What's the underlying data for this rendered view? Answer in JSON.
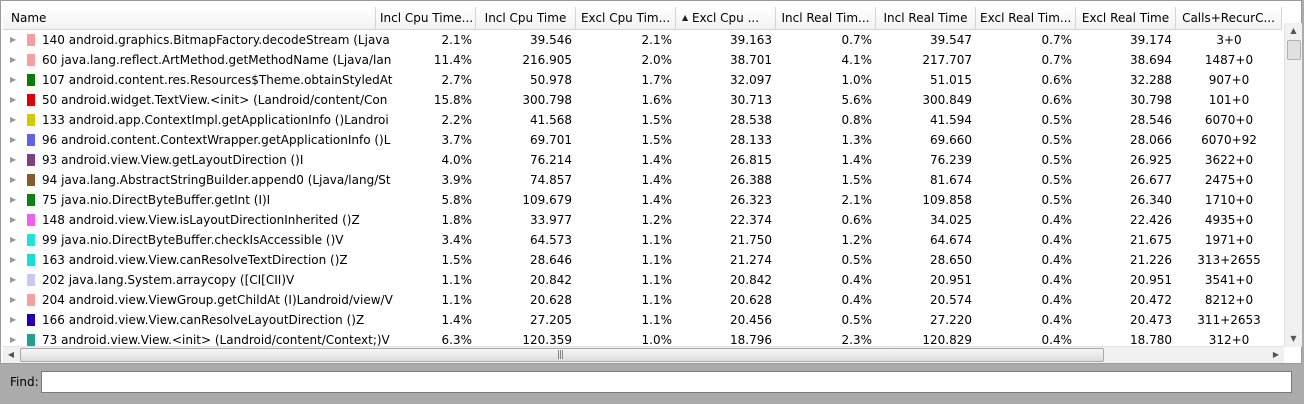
{
  "columns": [
    {
      "label": "Name",
      "width": 373,
      "name": "col-name"
    },
    {
      "label": "Incl Cpu Time...",
      "width": 100,
      "name": "col-incl-cpu-pct"
    },
    {
      "label": "Incl Cpu Time",
      "width": 100,
      "name": "col-incl-cpu"
    },
    {
      "label": "Excl Cpu Tim...",
      "width": 100,
      "name": "col-excl-cpu-pct"
    },
    {
      "label": "Excl Cpu ...",
      "width": 100,
      "name": "col-excl-cpu",
      "sorted": true
    },
    {
      "label": "Incl Real Tim...",
      "width": 100,
      "name": "col-incl-real-pct"
    },
    {
      "label": "Incl Real Time",
      "width": 100,
      "name": "col-incl-real"
    },
    {
      "label": "Excl Real Tim...",
      "width": 100,
      "name": "col-excl-real-pct"
    },
    {
      "label": "Excl Real Time",
      "width": 100,
      "name": "col-excl-real"
    },
    {
      "label": "Calls+RecurC...",
      "width": 106,
      "name": "col-calls"
    }
  ],
  "rows": [
    {
      "color": "#f4a0a0",
      "name": "140 android.graphics.BitmapFactory.decodeStream (Ljava",
      "v": [
        "2.1%",
        "39.546",
        "2.1%",
        "39.163",
        "0.7%",
        "39.547",
        "0.7%",
        "39.174",
        "3+0"
      ]
    },
    {
      "color": "#f4a0a0",
      "name": "60 java.lang.reflect.ArtMethod.getMethodName (Ljava/lan",
      "v": [
        "11.4%",
        "216.905",
        "2.0%",
        "38.701",
        "4.1%",
        "217.707",
        "0.7%",
        "38.694",
        "1487+0"
      ]
    },
    {
      "color": "#0a7a0a",
      "name": "107 android.content.res.Resources$Theme.obtainStyledAt",
      "v": [
        "2.7%",
        "50.978",
        "1.7%",
        "32.097",
        "1.0%",
        "51.015",
        "0.6%",
        "32.288",
        "907+0"
      ]
    },
    {
      "color": "#e00000",
      "name": "50 android.widget.TextView.<init> (Landroid/content/Con",
      "v": [
        "15.8%",
        "300.798",
        "1.6%",
        "30.713",
        "5.6%",
        "300.849",
        "0.6%",
        "30.798",
        "101+0"
      ]
    },
    {
      "color": "#d8c800",
      "name": "133 android.app.ContextImpl.getApplicationInfo ()Landroi",
      "v": [
        "2.2%",
        "41.568",
        "1.5%",
        "28.538",
        "0.8%",
        "41.594",
        "0.5%",
        "28.546",
        "6070+0"
      ]
    },
    {
      "color": "#6060f0",
      "name": "96 android.content.ContextWrapper.getApplicationInfo ()L",
      "v": [
        "3.7%",
        "69.701",
        "1.5%",
        "28.133",
        "1.3%",
        "69.660",
        "0.5%",
        "28.066",
        "6070+92"
      ]
    },
    {
      "color": "#804080",
      "name": "93 android.view.View.getLayoutDirection ()I",
      "v": [
        "4.0%",
        "76.214",
        "1.4%",
        "26.815",
        "1.4%",
        "76.239",
        "0.5%",
        "26.925",
        "3622+0"
      ]
    },
    {
      "color": "#8b5a2b",
      "name": "94 java.lang.AbstractStringBuilder.append0 (Ljava/lang/St",
      "v": [
        "3.9%",
        "74.857",
        "1.4%",
        "26.388",
        "1.5%",
        "81.674",
        "0.5%",
        "26.677",
        "2475+0"
      ]
    },
    {
      "color": "#108010",
      "name": "75 java.nio.DirectByteBuffer.getInt (I)I",
      "v": [
        "5.8%",
        "109.679",
        "1.4%",
        "26.323",
        "2.1%",
        "109.858",
        "0.5%",
        "26.340",
        "1710+0"
      ]
    },
    {
      "color": "#f060f0",
      "name": "148 android.view.View.isLayoutDirectionInherited ()Z",
      "v": [
        "1.8%",
        "33.977",
        "1.2%",
        "22.374",
        "0.6%",
        "34.025",
        "0.4%",
        "22.426",
        "4935+0"
      ]
    },
    {
      "color": "#20e0e0",
      "name": "99 java.nio.DirectByteBuffer.checkIsAccessible ()V",
      "v": [
        "3.4%",
        "64.573",
        "1.1%",
        "21.750",
        "1.2%",
        "64.674",
        "0.4%",
        "21.675",
        "1971+0"
      ]
    },
    {
      "color": "#10e0e0",
      "name": "163 android.view.View.canResolveTextDirection ()Z",
      "v": [
        "1.5%",
        "28.646",
        "1.1%",
        "21.274",
        "0.5%",
        "28.650",
        "0.4%",
        "21.226",
        "313+2655"
      ]
    },
    {
      "color": "#c8c8f0",
      "name": "202 java.lang.System.arraycopy ([CI[CII)V",
      "v": [
        "1.1%",
        "20.842",
        "1.1%",
        "20.842",
        "0.4%",
        "20.951",
        "0.4%",
        "20.951",
        "3541+0"
      ]
    },
    {
      "color": "#f4a0a0",
      "name": "204 android.view.ViewGroup.getChildAt (I)Landroid/view/V",
      "v": [
        "1.1%",
        "20.628",
        "1.1%",
        "20.628",
        "0.4%",
        "20.574",
        "0.4%",
        "20.472",
        "8212+0"
      ]
    },
    {
      "color": "#2000b0",
      "name": "166 android.view.View.canResolveLayoutDirection ()Z",
      "v": [
        "1.4%",
        "27.205",
        "1.1%",
        "20.456",
        "0.5%",
        "27.220",
        "0.4%",
        "20.473",
        "311+2653"
      ]
    },
    {
      "color": "#20a090",
      "name": "73 android.view.View.<init> (Landroid/content/Context;)V",
      "v": [
        "6.3%",
        "120.359",
        "1.0%",
        "18.796",
        "2.3%",
        "120.829",
        "0.4%",
        "18.780",
        "312+0"
      ]
    }
  ],
  "find": {
    "label": "Find:",
    "value": ""
  }
}
